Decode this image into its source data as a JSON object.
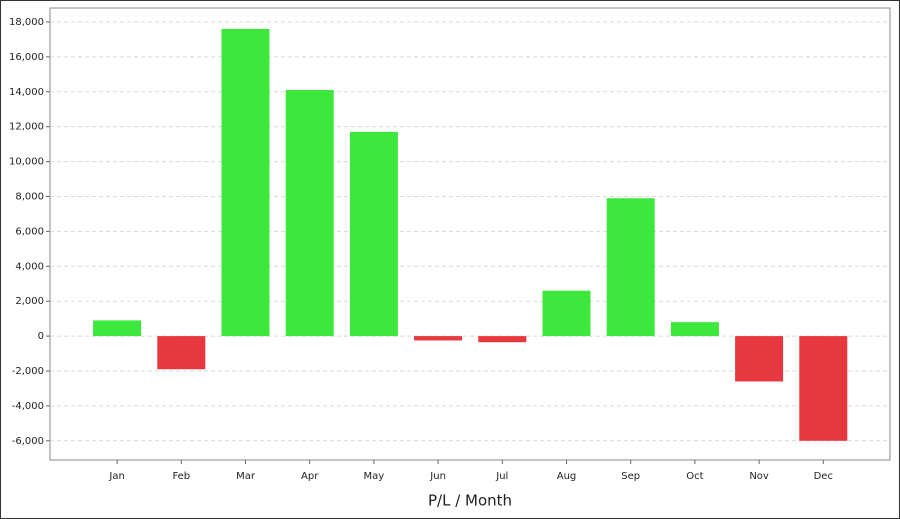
{
  "chart_data": {
    "type": "bar",
    "x_label": "P/L / Month",
    "categories": [
      "Jan",
      "Feb",
      "Mar",
      "Apr",
      "May",
      "Jun",
      "Jul",
      "Aug",
      "Sep",
      "Oct",
      "Nov",
      "Dec"
    ],
    "values": [
      900,
      -1900,
      17600,
      14100,
      11700,
      -250,
      -350,
      2600,
      7900,
      800,
      -2600,
      -6000
    ],
    "positive_color": "#3de83d",
    "negative_color": "#e8383f",
    "ylim": [
      -7100,
      18800
    ],
    "yticks": [
      {
        "value": -6000,
        "label": "-6,000"
      },
      {
        "value": -4000,
        "label": "-4,000"
      },
      {
        "value": -2000,
        "label": "-2,000"
      },
      0,
      {
        "value": 2000,
        "label": "2,000"
      },
      {
        "value": 4000,
        "label": "4,000"
      },
      {
        "value": 6000,
        "label": "6,000"
      },
      {
        "value": 8000,
        "label": "8,000"
      },
      {
        "value": 10000,
        "label": "10,000"
      },
      {
        "value": 12000,
        "label": "12,000"
      },
      {
        "value": 14000,
        "label": "14,000"
      },
      {
        "value": 16000,
        "label": "16,000"
      },
      {
        "value": 18000,
        "label": "18,000"
      }
    ],
    "grid": true
  }
}
